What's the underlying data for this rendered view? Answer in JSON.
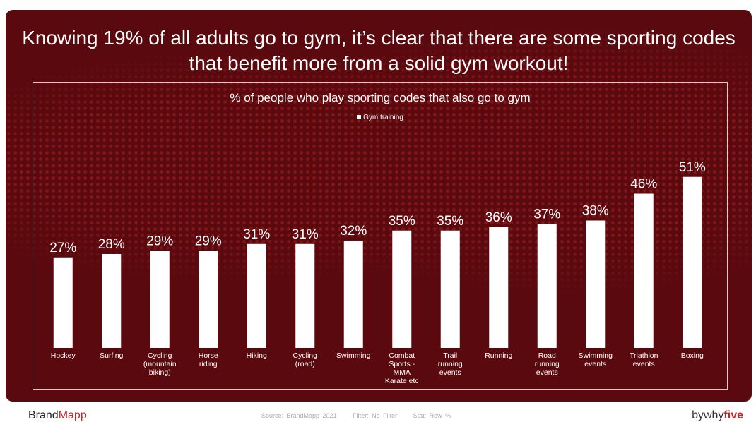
{
  "headline": "Knowing 19% of all adults go to gym, it’s clear that there are some sporting codes that benefit more from a solid gym workout!",
  "colors": {
    "background": "#5a0a0e",
    "bars": "#ffffff",
    "text": "#ffffff",
    "accent": "#c0282d"
  },
  "chart_data": {
    "type": "bar",
    "title": "% of people who play sporting codes that also go to gym",
    "categories": [
      "Hockey",
      "Surfing",
      "Cycling (mountain biking)",
      "Horse riding",
      "Hiking",
      "Cycling (road)",
      "Swimming",
      "Combat Sports - MMA Karate etc",
      "Trail running events",
      "Running",
      "Road running events",
      "Swimming events",
      "Triathlon events",
      "Boxing"
    ],
    "category_lines": [
      [
        "Hockey"
      ],
      [
        "Surfing"
      ],
      [
        "Cycling",
        "(mountain",
        "biking)"
      ],
      [
        "Horse",
        "riding"
      ],
      [
        "Hiking"
      ],
      [
        "Cycling",
        "(road)"
      ],
      [
        "Swimming"
      ],
      [
        "Combat",
        "Sports -",
        "MMA",
        "Karate etc"
      ],
      [
        "Trail",
        "running",
        "events"
      ],
      [
        "Running"
      ],
      [
        "Road",
        "running",
        "events"
      ],
      [
        "Swimming",
        "events"
      ],
      [
        "Triathlon",
        "events"
      ],
      [
        "Boxing"
      ]
    ],
    "series": [
      {
        "name": "Gym training",
        "values": [
          27,
          28,
          29,
          29,
          31,
          31,
          32,
          35,
          35,
          36,
          37,
          38,
          46,
          51
        ]
      }
    ],
    "value_labels": [
      "27%",
      "28%",
      "29%",
      "29%",
      "31%",
      "31%",
      "32%",
      "35%",
      "35%",
      "36%",
      "37%",
      "38%",
      "46%",
      "51%"
    ],
    "ylim": [
      0,
      51
    ],
    "legend": "top-center",
    "grid": false
  },
  "footer": {
    "brand_part1": "Brand",
    "brand_part2": "Mapp",
    "source": "Source: BrandMapp 2021",
    "filter": "Filter: No Filter",
    "stat": "Stat: Row %",
    "byline_part1": "bywhy",
    "byline_part2": "five"
  }
}
